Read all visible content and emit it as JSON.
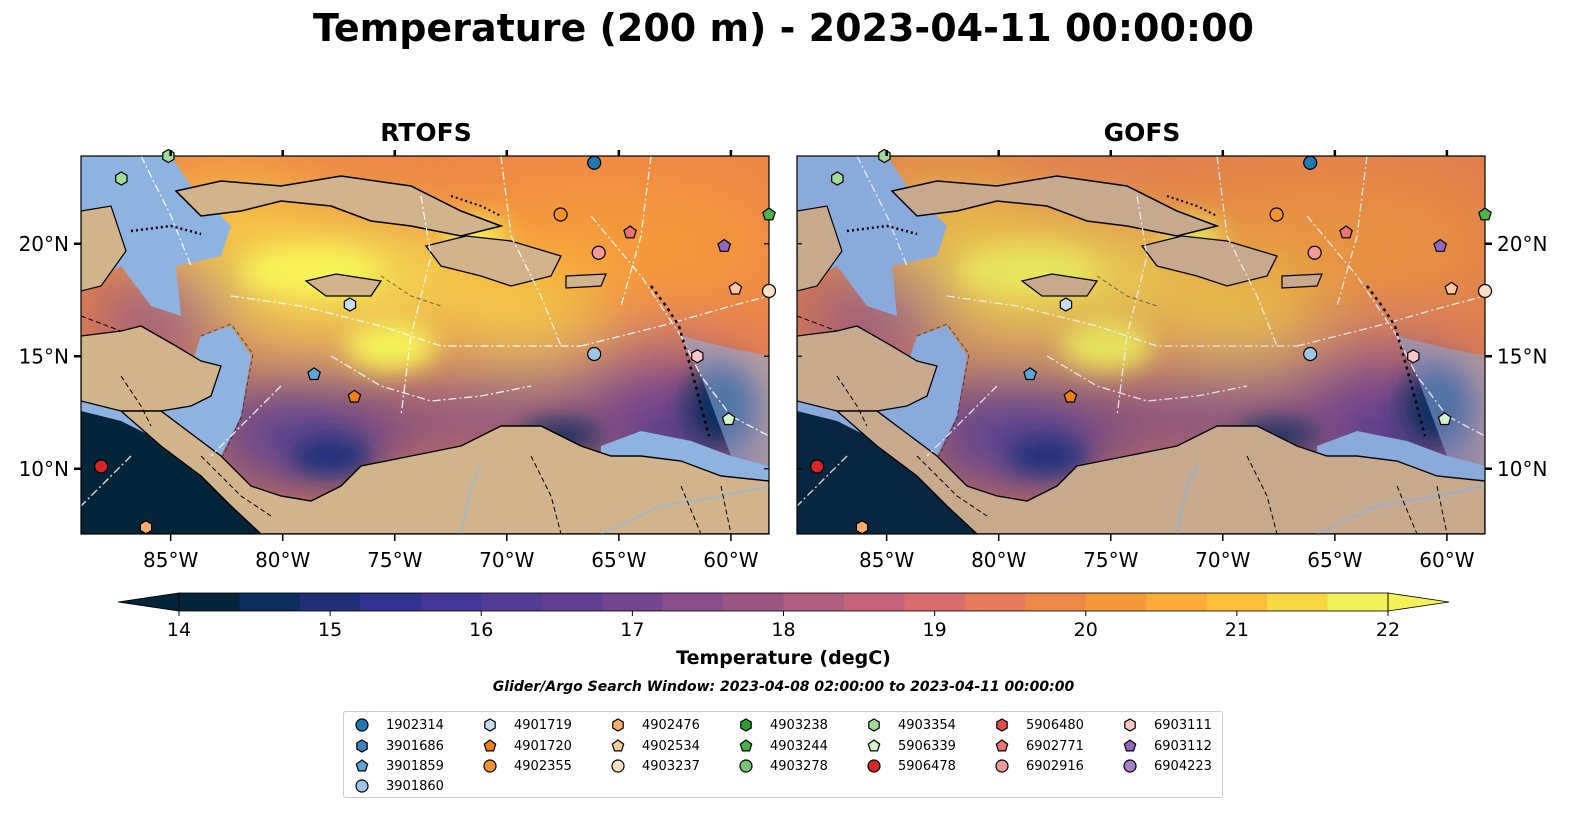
{
  "title": "Temperature (200 m) - 2023-04-11 00:00:00",
  "panels": [
    {
      "title": "RTOFS"
    },
    {
      "title": "GOFS"
    }
  ],
  "axes": {
    "lon_ticks": [
      "85°W",
      "80°W",
      "75°W",
      "70°W",
      "65°W",
      "60°W"
    ],
    "lat_ticks": [
      "20°N",
      "15°N",
      "10°N"
    ],
    "lon_range": [
      -89,
      -58.3
    ],
    "lat_range": [
      7.1,
      23.9
    ]
  },
  "colorbar": {
    "label": "Temperature (degC)",
    "min": 14,
    "max": 22,
    "step": 0.5,
    "ticks": [
      "14",
      "15",
      "16",
      "17",
      "18",
      "19",
      "20",
      "21",
      "22"
    ],
    "colors": [
      "#04243a",
      "#0e2d5f",
      "#1e307a",
      "#2f338f",
      "#423797",
      "#523c97",
      "#633f93",
      "#744690",
      "#884f8b",
      "#9c5686",
      "#b05d80",
      "#c6637a",
      "#d96c6c",
      "#e77a5a",
      "#ee8848",
      "#f6993b",
      "#faab38",
      "#fbbd3a",
      "#f7d843",
      "#f3f157"
    ],
    "extend": "both"
  },
  "search_window": "Glider/Argo Search Window: 2023-04-08 02:00:00 to 2023-04-11 00:00:00",
  "legend": [
    {
      "label": "1902314",
      "shape": "circle",
      "color": "#1f77b4"
    },
    {
      "label": "3901686",
      "shape": "hexagon",
      "color": "#3b84c4"
    },
    {
      "label": "3901859",
      "shape": "pentagon",
      "color": "#5aa4d8"
    },
    {
      "label": "3901860",
      "shape": "circle",
      "color": "#9dc6e8"
    },
    {
      "label": "4901719",
      "shape": "hexagon",
      "color": "#c6dcf0"
    },
    {
      "label": "4901720",
      "shape": "pentagon",
      "color": "#f07f17"
    },
    {
      "label": "4902355",
      "shape": "circle",
      "color": "#f7922e"
    },
    {
      "label": "4902476",
      "shape": "hexagon",
      "color": "#fbac66"
    },
    {
      "label": "4902534",
      "shape": "pentagon",
      "color": "#fdc99c"
    },
    {
      "label": "4903237",
      "shape": "circle",
      "color": "#fde0c6"
    },
    {
      "label": "4903238",
      "shape": "hexagon",
      "color": "#2ca02c"
    },
    {
      "label": "4903244",
      "shape": "pentagon",
      "color": "#4bb348"
    },
    {
      "label": "4903278",
      "shape": "circle",
      "color": "#74c776"
    },
    {
      "label": "4903354",
      "shape": "hexagon",
      "color": "#a3dc9a"
    },
    {
      "label": "5906339",
      "shape": "pentagon",
      "color": "#d5f2c8"
    },
    {
      "label": "5906478",
      "shape": "circle",
      "color": "#d62728"
    },
    {
      "label": "5906480",
      "shape": "hexagon",
      "color": "#e04e4b"
    },
    {
      "label": "6902771",
      "shape": "pentagon",
      "color": "#ea7371"
    },
    {
      "label": "6902916",
      "shape": "circle",
      "color": "#f29a98"
    },
    {
      "label": "6903111",
      "shape": "hexagon",
      "color": "#fac5c6"
    },
    {
      "label": "6903112",
      "shape": "pentagon",
      "color": "#9467bd"
    },
    {
      "label": "6904223",
      "shape": "circle",
      "color": "#a47fcc"
    }
  ],
  "floats": [
    {
      "id": "1902314",
      "lon": -66.1,
      "lat": 23.6
    },
    {
      "id": "3901860",
      "lon": -66.1,
      "lat": 15.1
    },
    {
      "id": "3901859",
      "lon": -78.6,
      "lat": 14.2
    },
    {
      "id": "4901719",
      "lon": -77.0,
      "lat": 17.3
    },
    {
      "id": "4901720",
      "lon": -76.8,
      "lat": 13.2
    },
    {
      "id": "4902355",
      "lon": -67.6,
      "lat": 21.3
    },
    {
      "id": "4902534",
      "lon": -59.8,
      "lat": 18.0
    },
    {
      "id": "4903237",
      "lon": -58.3,
      "lat": 17.9
    },
    {
      "id": "4902476",
      "lon": -86.1,
      "lat": 7.4
    },
    {
      "id": "4903244",
      "lon": -58.3,
      "lat": 21.3
    },
    {
      "id": "4903354",
      "lon": -85.1,
      "lat": 23.9
    },
    {
      "id": "4903354",
      "lon": -87.2,
      "lat": 22.9
    },
    {
      "id": "5906339",
      "lon": -60.1,
      "lat": 12.2
    },
    {
      "id": "5906478",
      "lon": -88.1,
      "lat": 10.1
    },
    {
      "id": "6902771",
      "lon": -64.5,
      "lat": 20.5
    },
    {
      "id": "6902916",
      "lon": -65.9,
      "lat": 19.6
    },
    {
      "id": "6903111",
      "lon": -61.5,
      "lat": 15.0
    },
    {
      "id": "6903112",
      "lon": -60.3,
      "lat": 19.9
    }
  ]
}
